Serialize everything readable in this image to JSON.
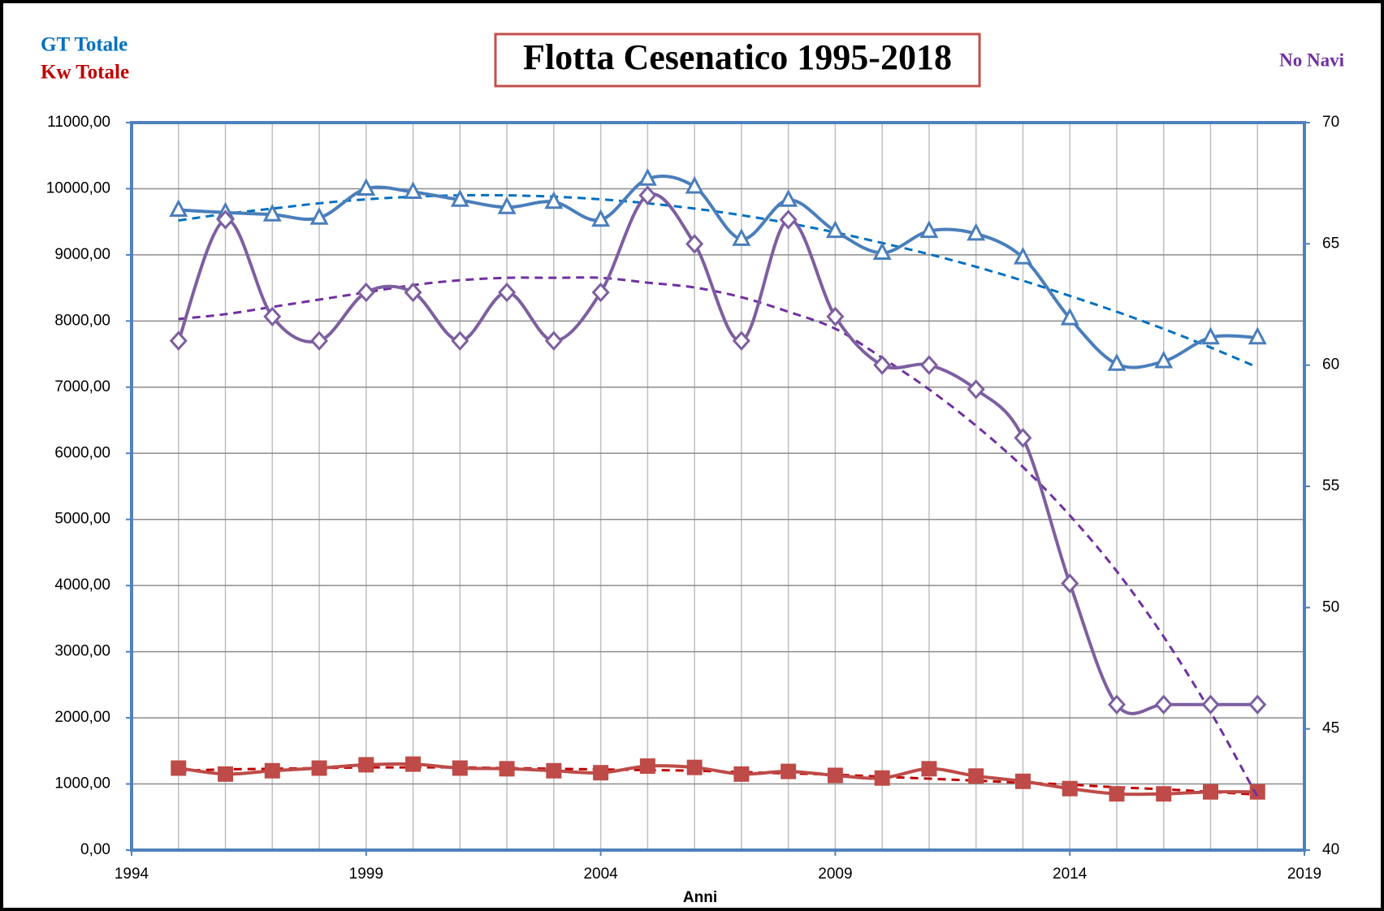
{
  "chart_data": {
    "type": "line",
    "title": "Flotta Cesenatico 1995-2018",
    "xlabel": "Anni",
    "x": [
      1995,
      1996,
      1997,
      1998,
      1999,
      2000,
      2001,
      2002,
      2003,
      2004,
      2005,
      2006,
      2007,
      2008,
      2009,
      2010,
      2011,
      2012,
      2013,
      2014,
      2015,
      2016,
      2017,
      2018
    ],
    "xlim": [
      1994,
      2019
    ],
    "xticks": [
      1994,
      1999,
      2004,
      2009,
      2014,
      2019
    ],
    "ylim": [
      0,
      11000
    ],
    "yticks": [
      {
        "value": 0,
        "label": "0,00"
      },
      {
        "value": 1000,
        "label": "1000,00"
      },
      {
        "value": 2000,
        "label": "2000,00"
      },
      {
        "value": 3000,
        "label": "3000,00"
      },
      {
        "value": 4000,
        "label": "4000,00"
      },
      {
        "value": 5000,
        "label": "5000,00"
      },
      {
        "value": 6000,
        "label": "6000,00"
      },
      {
        "value": 7000,
        "label": "7000,00"
      },
      {
        "value": 8000,
        "label": "8000,00"
      },
      {
        "value": 9000,
        "label": "9000,00"
      },
      {
        "value": 10000,
        "label": "10000,00"
      },
      {
        "value": 11000,
        "label": "11000,00"
      }
    ],
    "y2lim": [
      40,
      70
    ],
    "y2ticks": [
      40,
      45,
      50,
      55,
      60,
      65,
      70
    ],
    "grid": true,
    "series": [
      {
        "name": "GT Totale",
        "color": "#4a7ebb",
        "trend_color": "#0070c0",
        "marker": "triangle",
        "values": [
          9680,
          9640,
          9610,
          9560,
          10000,
          9950,
          9830,
          9720,
          9800,
          9530,
          10150,
          10030,
          9240,
          9830,
          9360,
          9030,
          9360,
          9320,
          8960,
          8040,
          7350,
          7390,
          7750,
          7750
        ],
        "trend": [
          9520,
          9620,
          9700,
          9780,
          9840,
          9880,
          9900,
          9900,
          9880,
          9840,
          9780,
          9700,
          9600,
          9480,
          9340,
          9180,
          9010,
          8820,
          8610,
          8380,
          8140,
          7880,
          7600,
          7300
        ]
      },
      {
        "name": "Kw Totale",
        "color": "#be4b48",
        "trend_color": "#c00000",
        "marker": "square",
        "values": [
          1240,
          1150,
          1200,
          1240,
          1290,
          1300,
          1240,
          1230,
          1200,
          1170,
          1270,
          1250,
          1150,
          1190,
          1130,
          1090,
          1230,
          1120,
          1040,
          930,
          850,
          850,
          880,
          880
        ],
        "trend": [
          1200,
          1220,
          1230,
          1240,
          1250,
          1250,
          1250,
          1240,
          1230,
          1220,
          1210,
          1200,
          1180,
          1160,
          1140,
          1110,
          1080,
          1050,
          1020,
          990,
          950,
          920,
          880,
          840
        ]
      },
      {
        "name": "No Navi",
        "color": "#7d5fa0",
        "trend_color": "#7030a0",
        "marker": "diamond",
        "axis": "y2",
        "values": [
          61,
          66,
          62,
          61,
          63,
          63,
          61,
          63,
          61,
          63,
          67,
          65,
          61,
          66,
          62,
          60,
          60,
          59,
          57,
          51,
          46,
          46,
          46,
          46
        ],
        "trend": [
          61.9,
          62.1,
          62.4,
          62.7,
          63.0,
          63.3,
          63.5,
          63.6,
          63.6,
          63.6,
          63.4,
          63.2,
          62.8,
          62.2,
          61.5,
          60.3,
          59.0,
          57.5,
          55.8,
          53.8,
          51.5,
          48.8,
          45.7,
          42.2
        ]
      }
    ]
  }
}
